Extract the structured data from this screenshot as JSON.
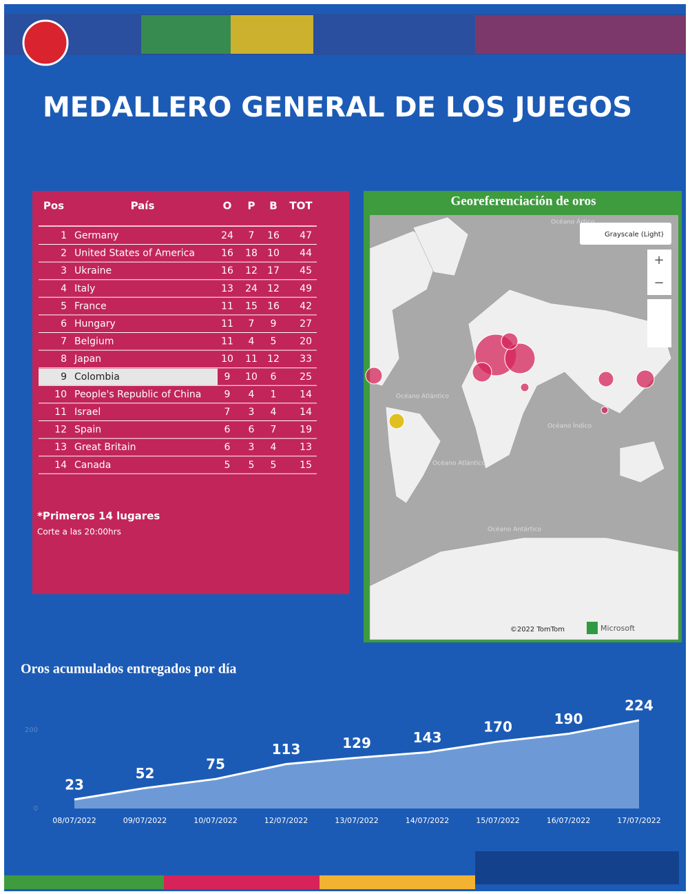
{
  "header": {
    "title": "MEDALLERO GENERAL DE LOS JUEGOS"
  },
  "table": {
    "columns": [
      "Pos",
      "País",
      "O",
      "P",
      "B",
      "TOT"
    ],
    "rows": [
      [
        1,
        "Germany",
        24,
        7,
        16,
        47
      ],
      [
        2,
        "United States of America",
        16,
        18,
        10,
        44
      ],
      [
        3,
        "Ukraine",
        16,
        12,
        17,
        45
      ],
      [
        4,
        "Italy",
        13,
        24,
        12,
        49
      ],
      [
        5,
        "France",
        11,
        15,
        16,
        42
      ],
      [
        6,
        "Hungary",
        11,
        7,
        9,
        27
      ],
      [
        7,
        "Belgium",
        11,
        4,
        5,
        20
      ],
      [
        8,
        "Japan",
        10,
        11,
        12,
        33
      ],
      [
        9,
        "Colombia",
        9,
        10,
        6,
        25
      ],
      [
        10,
        "People's Republic of China",
        9,
        4,
        1,
        14
      ],
      [
        11,
        "Israel",
        7,
        3,
        4,
        14
      ],
      [
        12,
        "Spain",
        6,
        6,
        7,
        19
      ],
      [
        13,
        "Great Britain",
        6,
        3,
        4,
        13
      ],
      [
        14,
        "Canada",
        5,
        5,
        5,
        15
      ]
    ],
    "note": "*Primeros 14 lugares",
    "cutoff": "Corte a las 20:00hrs"
  },
  "map": {
    "title": "Georeferenciación de oros",
    "style_label": "Grayscale (Light)",
    "ocean_labels": [
      "Océano Ártico",
      "Océano Atlántico",
      "Océano Índico",
      "Océano Atlántico",
      "Océano Antártico"
    ],
    "copyright": "©2022 TomTom",
    "brand": "Microsoft"
  },
  "chart_data": {
    "type": "area",
    "title": "Oros acumulados entregados por día",
    "categories": [
      "08/07/2022",
      "09/07/2022",
      "10/07/2022",
      "12/07/2022",
      "13/07/2022",
      "14/07/2022",
      "15/07/2022",
      "16/07/2022",
      "17/07/2022"
    ],
    "values": [
      23,
      52,
      75,
      113,
      129,
      143,
      170,
      190,
      224
    ],
    "ylim": [
      0,
      240
    ],
    "yticks": [
      0,
      200
    ],
    "color": "#ffffff",
    "fill": "#6d9ad6"
  }
}
